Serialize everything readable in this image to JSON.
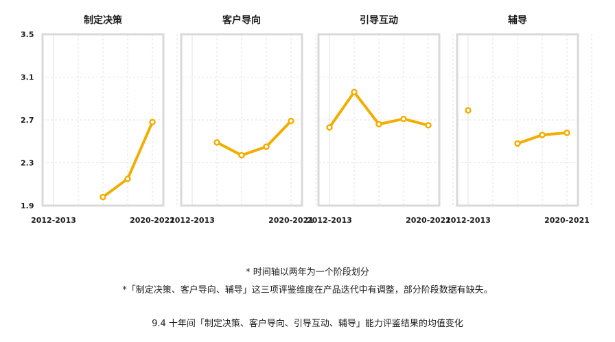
{
  "colors": {
    "line": "#F2AE00",
    "frame": "#D9D9D9",
    "grid": "#E2E2E2"
  },
  "chart_data": {
    "type": "line",
    "ylim": [
      1.9,
      3.5
    ],
    "yticks": [
      "1.9",
      "2.3",
      "2.7",
      "3.1",
      "3.5"
    ],
    "x_slots": 6,
    "xtick_labels": [
      {
        "slot": 0,
        "label": "2012-2013"
      },
      {
        "slot": 4,
        "label": "2020-2021"
      }
    ],
    "panels": [
      {
        "title": "制定决策",
        "segments": [
          [
            [
              2,
              1.98
            ],
            [
              3,
              2.15
            ],
            [
              4,
              2.68
            ]
          ]
        ]
      },
      {
        "title": "客户导向",
        "segments": [
          [
            [
              1,
              2.49
            ],
            [
              2,
              2.37
            ],
            [
              3,
              2.45
            ],
            [
              4,
              2.69
            ]
          ]
        ]
      },
      {
        "title": "引导互动",
        "segments": [
          [
            [
              0,
              2.63
            ],
            [
              1,
              2.96
            ],
            [
              2,
              2.66
            ],
            [
              3,
              2.71
            ],
            [
              4,
              2.65
            ]
          ]
        ]
      },
      {
        "title": "辅导",
        "segments": [
          [
            [
              0,
              2.79
            ]
          ],
          [
            [
              2,
              2.48
            ],
            [
              3,
              2.56
            ],
            [
              4,
              2.58
            ]
          ]
        ]
      }
    ]
  },
  "notes": {
    "line1": "* 时间轴以两年为一个阶段划分",
    "line2": "*「制定决策、客户导向、辅导」这三项评鉴维度在产品迭代中有调整，部分阶段数据有缺失。",
    "caption": "9.4 十年间「制定决策、客户导向、引导互动、辅导」能力评鉴结果的均值变化"
  }
}
